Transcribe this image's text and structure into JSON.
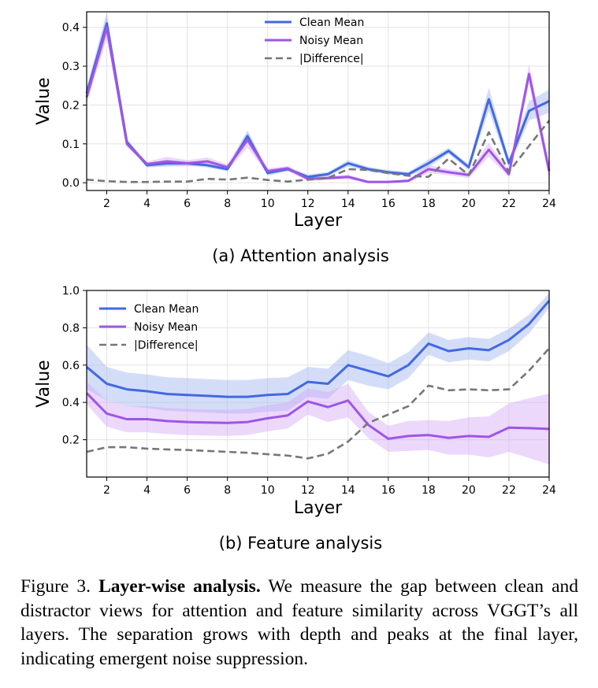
{
  "chart_data": [
    {
      "type": "line",
      "xlabel": "Layer",
      "ylabel": "Value",
      "xlim": [
        1,
        24
      ],
      "ylim": [
        -0.02,
        0.44
      ],
      "xticks": [
        2,
        4,
        6,
        8,
        10,
        12,
        14,
        16,
        18,
        20,
        22,
        24
      ],
      "yticks": [
        0.0,
        0.1,
        0.2,
        0.3,
        0.4
      ],
      "ytick_labels": [
        "0.0",
        "0.1",
        "0.2",
        "0.3",
        "0.4"
      ],
      "grid": true,
      "legend_position": "top-center",
      "x": [
        1,
        2,
        3,
        4,
        5,
        6,
        7,
        8,
        9,
        10,
        11,
        12,
        13,
        14,
        15,
        16,
        17,
        18,
        19,
        20,
        21,
        22,
        23,
        24
      ],
      "series": [
        {
          "name": "Clean Mean",
          "color": "#4169e1",
          "band_color": "#9fb3f0",
          "values": [
            0.23,
            0.41,
            0.105,
            0.045,
            0.05,
            0.05,
            0.045,
            0.035,
            0.12,
            0.025,
            0.035,
            0.015,
            0.022,
            0.05,
            0.035,
            0.027,
            0.022,
            0.05,
            0.082,
            0.04,
            0.215,
            0.05,
            0.185,
            0.21
          ],
          "band": [
            0.015,
            0.03,
            0.008,
            0.006,
            0.008,
            0.006,
            0.006,
            0.006,
            0.015,
            0.007,
            0.006,
            0.006,
            0.006,
            0.008,
            0.006,
            0.006,
            0.006,
            0.01,
            0.008,
            0.008,
            0.03,
            0.01,
            0.025,
            0.03
          ]
        },
        {
          "name": "Noisy Mean",
          "color": "#9e55e6",
          "band_color": "#d2a8f6",
          "values": [
            0.22,
            0.4,
            0.1,
            0.048,
            0.055,
            0.05,
            0.055,
            0.04,
            0.11,
            0.03,
            0.037,
            0.01,
            0.012,
            0.015,
            0.002,
            0.002,
            0.005,
            0.035,
            0.027,
            0.02,
            0.085,
            0.022,
            0.28,
            0.03
          ],
          "band": [
            0.015,
            0.03,
            0.008,
            0.006,
            0.012,
            0.008,
            0.01,
            0.008,
            0.02,
            0.007,
            0.006,
            0.006,
            0.005,
            0.006,
            0.003,
            0.003,
            0.004,
            0.01,
            0.008,
            0.008,
            0.018,
            0.008,
            0.025,
            0.02
          ]
        },
        {
          "name": "|Difference|",
          "color": "#777777",
          "dashed": true,
          "values": [
            0.008,
            0.004,
            0.002,
            0.002,
            0.003,
            0.003,
            0.01,
            0.008,
            0.013,
            0.007,
            0.003,
            0.008,
            0.012,
            0.035,
            0.033,
            0.025,
            0.018,
            0.015,
            0.062,
            0.02,
            0.13,
            0.028,
            0.095,
            0.16
          ]
        }
      ],
      "subcaption": "(a) Attention analysis"
    },
    {
      "type": "line",
      "xlabel": "Layer",
      "ylabel": "Value",
      "xlim": [
        1,
        24
      ],
      "ylim": [
        0.0,
        1.0
      ],
      "xticks": [
        2,
        4,
        6,
        8,
        10,
        12,
        14,
        16,
        18,
        20,
        22,
        24
      ],
      "yticks": [
        0.2,
        0.4,
        0.6,
        0.8,
        1.0
      ],
      "ytick_labels": [
        "0.2",
        "0.4",
        "0.6",
        "0.8",
        "1.0"
      ],
      "grid": true,
      "legend_position": "top-left",
      "x": [
        1,
        2,
        3,
        4,
        5,
        6,
        7,
        8,
        9,
        10,
        11,
        12,
        13,
        14,
        15,
        16,
        17,
        18,
        19,
        20,
        21,
        22,
        23,
        24
      ],
      "series": [
        {
          "name": "Clean Mean",
          "color": "#4169e1",
          "band_color": "#9fb3f0",
          "values": [
            0.59,
            0.5,
            0.47,
            0.46,
            0.445,
            0.44,
            0.435,
            0.43,
            0.43,
            0.44,
            0.445,
            0.51,
            0.5,
            0.6,
            0.57,
            0.54,
            0.6,
            0.715,
            0.675,
            0.69,
            0.68,
            0.735,
            0.82,
            0.945
          ],
          "band": [
            0.12,
            0.09,
            0.09,
            0.09,
            0.09,
            0.09,
            0.09,
            0.09,
            0.09,
            0.09,
            0.09,
            0.08,
            0.08,
            0.08,
            0.08,
            0.07,
            0.07,
            0.06,
            0.06,
            0.06,
            0.06,
            0.06,
            0.05,
            0.04
          ]
        },
        {
          "name": "Noisy Mean",
          "color": "#9e55e6",
          "band_color": "#d2a8f6",
          "values": [
            0.45,
            0.34,
            0.31,
            0.31,
            0.3,
            0.295,
            0.292,
            0.29,
            0.295,
            0.315,
            0.33,
            0.405,
            0.375,
            0.41,
            0.28,
            0.205,
            0.22,
            0.225,
            0.21,
            0.22,
            0.215,
            0.265,
            0.262,
            0.258
          ],
          "band": [
            0.06,
            0.07,
            0.07,
            0.07,
            0.07,
            0.07,
            0.07,
            0.07,
            0.07,
            0.07,
            0.07,
            0.07,
            0.08,
            0.09,
            0.07,
            0.07,
            0.08,
            0.08,
            0.09,
            0.1,
            0.11,
            0.13,
            0.16,
            0.19
          ]
        },
        {
          "name": "|Difference|",
          "color": "#777777",
          "dashed": true,
          "values": [
            0.135,
            0.16,
            0.16,
            0.152,
            0.148,
            0.145,
            0.14,
            0.135,
            0.13,
            0.122,
            0.115,
            0.1,
            0.125,
            0.19,
            0.29,
            0.335,
            0.38,
            0.49,
            0.465,
            0.47,
            0.465,
            0.47,
            0.57,
            0.69
          ]
        }
      ],
      "subcaption": "(b) Feature analysis"
    }
  ],
  "caption": {
    "prefix": "Figure 3. ",
    "bold": "Layer-wise analysis.",
    "body": " We measure the gap between clean and distractor views for attention and feature similarity across VGGT’s all layers.  The separation grows with depth and peaks at the final layer, indicating emergent noise suppression."
  }
}
